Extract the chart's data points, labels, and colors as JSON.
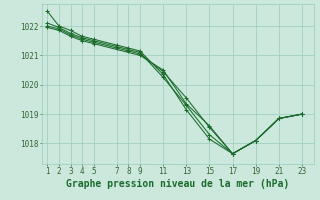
{
  "background_color": "#cce8dd",
  "grid_color": "#99ccbb",
  "line_color": "#1a6b2a",
  "marker_color": "#1a6b2a",
  "title": "Graphe pression niveau de la mer (hPa)",
  "title_fontsize": 7.0,
  "title_color": "#1a6b2a",
  "tick_color": "#336633",
  "tick_fontsize": 5.5,
  "xticks": [
    1,
    2,
    3,
    4,
    5,
    7,
    8,
    9,
    11,
    13,
    15,
    17,
    19,
    21,
    23
  ],
  "yticks": [
    1018,
    1019,
    1020,
    1021,
    1022
  ],
  "ylim": [
    1017.3,
    1022.75
  ],
  "xlim": [
    0.5,
    24.0
  ],
  "series": [
    {
      "x": [
        1,
        2,
        3,
        4,
        5,
        7,
        8,
        9,
        11,
        13,
        15,
        17,
        19,
        21,
        23
      ],
      "y": [
        1022.5,
        1022.0,
        1021.85,
        1021.65,
        1021.55,
        1021.35,
        1021.25,
        1021.15,
        1020.35,
        1019.15,
        1018.15,
        1017.65,
        1018.1,
        1018.85,
        1019.0
      ]
    },
    {
      "x": [
        1,
        2,
        3,
        4,
        5,
        7,
        8,
        9,
        11,
        13,
        15,
        17,
        19,
        21,
        23
      ],
      "y": [
        1022.1,
        1021.95,
        1021.75,
        1021.6,
        1021.5,
        1021.3,
        1021.2,
        1021.1,
        1020.25,
        1019.3,
        1018.3,
        1017.65,
        1018.1,
        1018.85,
        1019.0
      ]
    },
    {
      "x": [
        1,
        2,
        3,
        4,
        5,
        7,
        8,
        9,
        11,
        13,
        15,
        17,
        19,
        21,
        23
      ],
      "y": [
        1022.0,
        1021.9,
        1021.7,
        1021.55,
        1021.45,
        1021.25,
        1021.15,
        1021.05,
        1020.45,
        1019.55,
        1018.55,
        1017.65,
        1018.1,
        1018.85,
        1019.0
      ]
    },
    {
      "x": [
        1,
        2,
        3,
        4,
        5,
        9,
        11,
        13,
        15,
        17,
        19,
        21,
        23
      ],
      "y": [
        1021.95,
        1021.85,
        1021.65,
        1021.5,
        1021.4,
        1021.0,
        1020.5,
        1019.35,
        1018.6,
        1017.65,
        1018.1,
        1018.85,
        1019.0
      ]
    }
  ]
}
